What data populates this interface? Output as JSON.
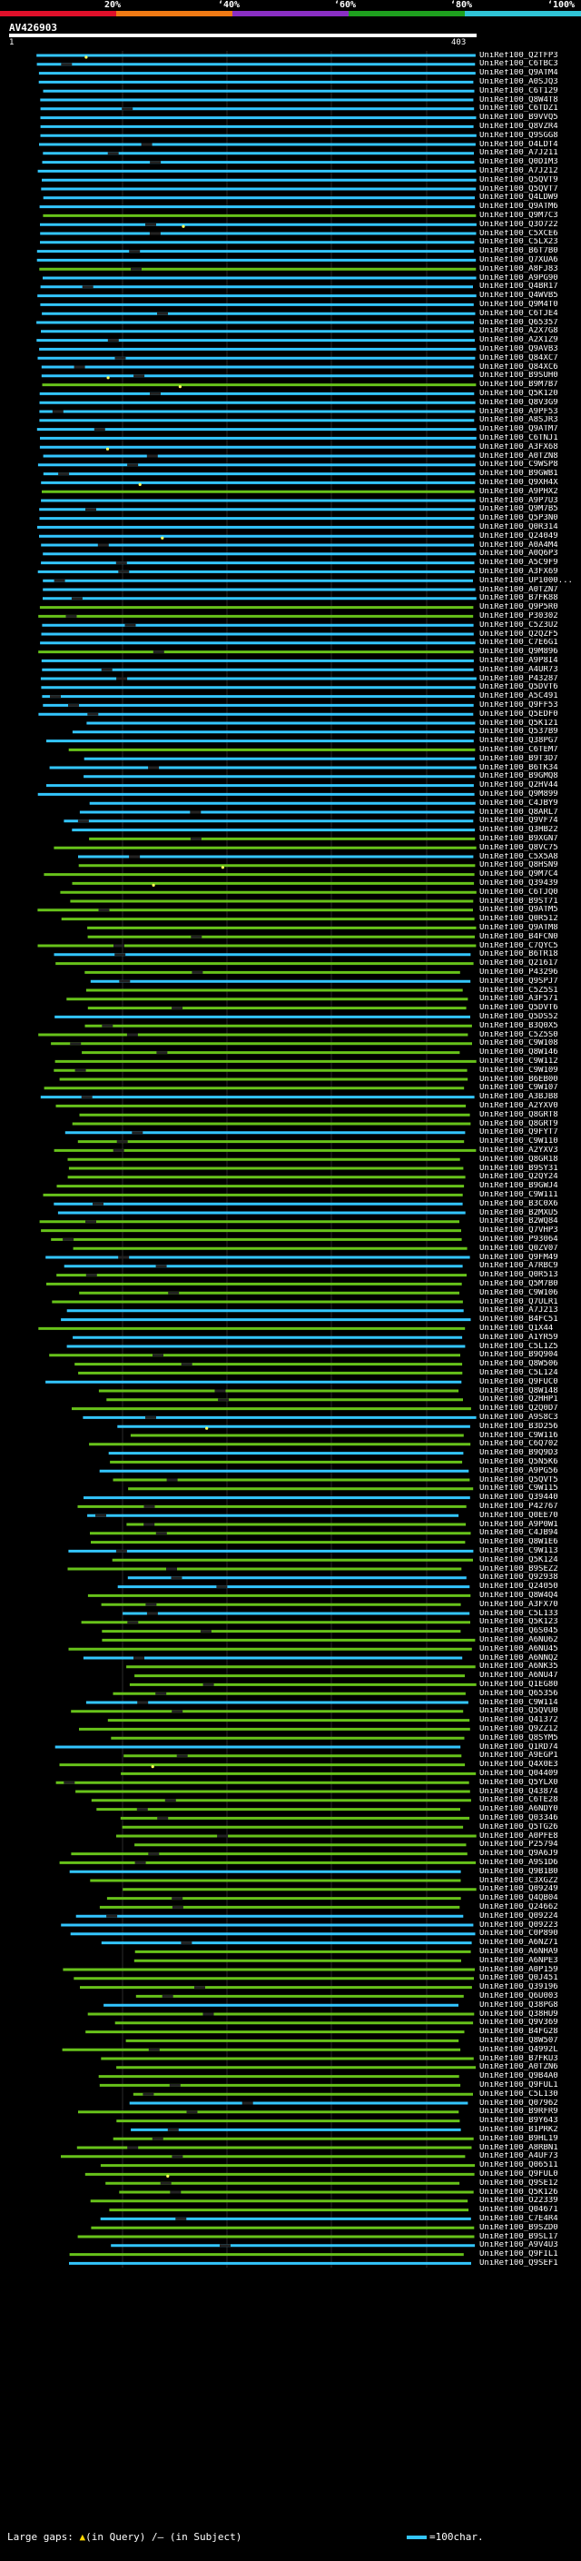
{
  "scale": {
    "labels": [
      "20%",
      "‘40%",
      "‘60%",
      "‘80%",
      "‘100%"
    ],
    "band_colors": [
      "#e0102a",
      "#f07a14",
      "#8a2fc4",
      "#1ea01e",
      "#2fc4d6"
    ]
  },
  "query": {
    "id": "AV426903",
    "start": "1",
    "end": "403"
  },
  "colors": {
    "hit_cyan": "#33c6ff",
    "hit_green": "#67c21a",
    "gap_marker": "#ffff55"
  },
  "hits": [
    "UniRef100_Q2TFP3",
    "UniRef100_C6TBC3",
    "UniRef100_Q9ATM4",
    "UniRef100_A0SJQ3",
    "UniRef100_C6T129",
    "UniRef100_Q8W4T8",
    "UniRef100_C6TDZ1",
    "UniRef100_B9VVQ5",
    "UniRef100_Q8VZR4",
    "UniRef100_Q9SGG8",
    "UniRef100_O4LDT4",
    "UniRef100_A7J211",
    "UniRef100_Q0DIM3",
    "UniRef100_A7J212",
    "UniRef100_Q5QVT9",
    "UniRef100_Q5QVT7",
    "UniRef100_Q4LDW9",
    "UniRef100_Q9ATM6",
    "UniRef100_Q9M7C3",
    "UniRef100_Q3O722",
    "UniRef100_C5XCE6",
    "UniRef100_C5LX23",
    "UniRef100_B6T7B0",
    "UniRef100_Q7XUA6",
    "UniRef100_A8FJ83",
    "UniRef100_A9PG90",
    "UniRef100_Q4BR17",
    "UniRef100_Q4WVB5",
    "UniRef100_Q9M4T0",
    "UniRef100_C6TJE4",
    "UniRef100_Q65357",
    "UniRef100_A2X7G8",
    "UniRef100_A2X1Z9",
    "UniRef100_Q9AVB3",
    "UniRef100_Q84XC7",
    "UniRef100_Q84XC6",
    "UniRef100_B9SUH0",
    "UniRef100_B9M7B7",
    "UniRef100_Q5K120",
    "UniRef100_Q8V3G9",
    "UniRef100_A9PF53",
    "UniRef100_A8SJR3",
    "UniRef100_Q9ATM7",
    "UniRef100_C6TNJ1",
    "UniRef100_A3FX68",
    "UniRef100_A0TZN8",
    "UniRef100_C9WSP8",
    "UniRef100_B9GWB1",
    "UniRef100_Q9XH4X",
    "UniRef100_A9PHX2",
    "UniRef100_A9P7U3",
    "UniRef100_Q9M7B5",
    "UniRef100_Q5P3N0",
    "UniRef100_Q0R314",
    "UniRef100_Q24049",
    "UniRef100_A0A4M4",
    "UniRef100_A0Q6P3",
    "UniRef100_A5C9F9",
    "UniRef100_A3FX69",
    "UniRef100_UP1000...",
    "UniRef100_A0TZN7",
    "UniRef100_B7FK88",
    "UniRef100_Q9P5R0",
    "UniRef100_P30302",
    "UniRef100_C5Z3U2",
    "UniRef100_Q2QZF5",
    "UniRef100_C7E6G1",
    "UniRef100_Q9M896",
    "UniRef100_A9P8I4",
    "UniRef100_A4UR73",
    "UniRef100_P43287",
    "UniRef100_Q5DVT6",
    "UniRef100_A5C491",
    "UniRef100_Q9FF53",
    "UniRef100_Q5EDF0",
    "UniRef100_Q5K121",
    "UniRef100_Q537B9",
    "UniRef100_Q38PG7",
    "UniRef100_C6TEM7",
    "UniRef100_B9T3D7",
    "UniRef100_B6TK34",
    "UniRef100_B9GMQ8",
    "UniRef100_Q2HV44",
    "UniRef100_Q9M899",
    "UniRef100_C4JBY9",
    "UniRef100_Q8ARL7",
    "UniRef100_Q9VF74",
    "UniRef100_Q3HB22",
    "UniRef100_B9XGN7",
    "UniRef100_Q8VC75",
    "UniRef100_C5X5A8",
    "UniRef100_Q8HSN9",
    "UniRef100_Q9M7C4",
    "UniRef100_Q39439",
    "UniRef100_C6TJQ0",
    "UniRef100_B9ST71",
    "UniRef100_Q9ATM5",
    "UniRef100_Q0R512",
    "UniRef100_Q9ATM8",
    "UniRef100_B4FCN0",
    "UniRef100_C7QYC5",
    "UniRef100_B6TR18",
    "UniRef100_Q21617",
    "UniRef100_P43296",
    "UniRef100_Q9SPJ7",
    "UniRef100_C5Z5S1",
    "UniRef100_A3F571",
    "UniRef100_Q5DVT6",
    "UniRef100_Q5DS52",
    "UniRef100_B3Q0X5",
    "UniRef100_C5Z5S0",
    "UniRef100_C9W108",
    "UniRef100_Q8W146",
    "UniRef100_C9W112",
    "UniRef100_C9W109",
    "UniRef100_B6EB00",
    "UniRef100_C9W107",
    "UniRef100_A3BJB8",
    "UniRef100_A2YXV0",
    "UniRef100_Q8GRT8",
    "UniRef100_Q8GRT9",
    "UniRef100_Q9FYT7",
    "UniRef100_C9W110",
    "UniRef100_A2YXV3",
    "UniRef100_Q8GR18",
    "UniRef100_B9SY31",
    "UniRef100_Q2QY24",
    "UniRef100_B9GWJ4",
    "UniRef100_C9W111",
    "UniRef100_B3C0X6",
    "UniRef100_B2MXU5",
    "UniRef100_B2WQ84",
    "UniRef100_Q7VHP3",
    "UniRef100_P93064",
    "UniRef100_Q0ZV07",
    "UniRef100_Q9FM49",
    "UniRef100_A7RBC9",
    "UniRef100_Q0R513",
    "UniRef100_Q5M7B0",
    "UniRef100_C9W106",
    "UniRef100_Q7ULR1",
    "UniRef100_A7J213",
    "UniRef100_B4FC51",
    "UniRef100_Q1X44",
    "UniRef100_A1YR59",
    "UniRef100_C5L1Z5",
    "UniRef100_B9Q904",
    "UniRef100_Q8W506",
    "UniRef100_C5L124",
    "UniRef100_Q9FUC0",
    "UniRef100_Q8W148",
    "UniRef100_Q2HHP1",
    "UniRef100_Q2Q0D7",
    "UniRef100_A9S8C3",
    "UniRef100_B3D256",
    "UniRef100_C9W116",
    "UniRef100_C6Q702",
    "UniRef100_B9Q9D3",
    "UniRef100_Q5N5K6",
    "UniRef100_A9PG56",
    "UniRef100_Q5QVT5",
    "UniRef100_C9W115",
    "UniRef100_Q39440",
    "UniRef100_P42767",
    "UniRef100_Q0EE70",
    "UniRef100_A9P0W1",
    "UniRef100_C4JB94",
    "UniRef100_Q8W1E6",
    "UniRef100_C9W113",
    "UniRef100_Q5K124",
    "UniRef100_B9SEZ2",
    "UniRef100_Q92938",
    "UniRef100_Q24050",
    "UniRef100_Q8W4Q4",
    "UniRef100_A3FX70",
    "UniRef100_C5L133",
    "UniRef100_Q5K123",
    "UniRef100_Q6S045",
    "UniRef100_A6NU62",
    "UniRef100_A6NU45",
    "UniRef100_A6NNQ2",
    "UniRef100_A6NK35",
    "UniRef100_A6NU47",
    "UniRef100_Q1EG80",
    "UniRef100_Q65356",
    "UniRef100_C9W114",
    "UniRef100_Q5QVU0",
    "UniRef100_Q41372",
    "UniRef100_Q9ZZ12",
    "UniRef100_Q8SYM5",
    "UniRef100_Q1RD74",
    "UniRef100_A9EGP1",
    "UniRef100_Q4X0E3",
    "UniRef100_Q04409",
    "UniRef100_Q5YLX0",
    "UniRef100_Q43874",
    "UniRef100_C6TE28",
    "UniRef100_A6NDY0",
    "UniRef100_Q03346",
    "UniRef100_Q5TG26",
    "UniRef100_A0PFE8",
    "UniRef100_P25794",
    "UniRef100_Q9A6J9",
    "UniRef100_A9S1D6",
    "UniRef100_Q9B1B0",
    "UniRef100_C3XGZ2",
    "UniRef100_Q09249",
    "UniRef100_Q4QB04",
    "UniRef100_Q24662",
    "UniRef100_Q09224",
    "UniRef100_Q09223",
    "UniRef100_C0P890",
    "UniRef100_A6NZ71",
    "UniRef100_A6NHA9",
    "UniRef100_A6NPE3",
    "UniRef100_A0P159",
    "UniRef100_Q0J451",
    "UniRef100_Q39196",
    "UniRef100_Q6U003",
    "UniRef100_Q38PG8",
    "UniRef100_Q38HU9",
    "UniRef100_Q9V369",
    "UniRef100_B4FG28",
    "UniRef100_Q8W507",
    "UniRef100_Q4992L",
    "UniRef100_B7FKU3",
    "UniRef100_A0TZN6",
    "UniRef100_Q9B4A0",
    "UniRef100_Q9FUL1",
    "UniRef100_C5L130",
    "UniRef100_Q07962",
    "UniRef100_B9RFR9",
    "UniRef100_B9Y643",
    "UniRef100_B1PRK2",
    "UniRef100_B9HL19",
    "UniRef100_A8RBN1",
    "UniRef100_A4UF73",
    "UniRef100_Q06511",
    "UniRef100_Q9FUL0",
    "UniRef100_Q9SE12",
    "UniRef100_Q5K126",
    "UniRef100_O22339",
    "UniRef100_Q04671",
    "UniRef100_C7E4R4",
    "UniRef100_B9SZD0",
    "UniRef100_B9SL17",
    "UniRef100_A9V4U3",
    "UniRef100_Q9FIL1",
    "UniRef100_Q9SEF1"
  ],
  "footer": {
    "gaps_label": "Large gaps:",
    "gaps_query_mark": "▲",
    "gaps_query_text": "(in Query)",
    "gaps_subject_mark": "/–",
    "gaps_subject_text": "(in Subject)",
    "scale_text": "=100char."
  }
}
